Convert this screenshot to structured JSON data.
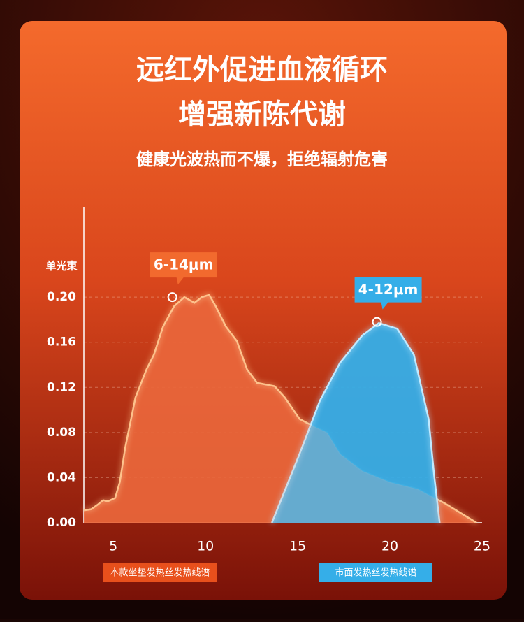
{
  "chart_data": {
    "type": "area",
    "title": "远红外促进血液循环",
    "subtitle": "增强新陈代谢",
    "caption": "健康光波热而不爆，拒绝辐射危害",
    "y_label": "单光束",
    "xlim": [
      3.4,
      25
    ],
    "ylim": [
      0,
      0.28
    ],
    "xticks": [
      5,
      10,
      15,
      20,
      25
    ],
    "yticks": [
      {
        "value": 0,
        "label": "0.00"
      },
      {
        "value": 0.04,
        "label": "0.04"
      },
      {
        "value": 0.08,
        "label": "0.08"
      },
      {
        "value": 0.12,
        "label": "0.12"
      },
      {
        "value": 0.16,
        "label": "0.16"
      },
      {
        "value": 0.2,
        "label": "0.20"
      }
    ],
    "grid": true,
    "series": [
      {
        "name": "本款坐垫发热丝发热线谱",
        "color": "#e8501c",
        "x": [
          3.4,
          3.8,
          4.15,
          4.45,
          4.7,
          5.1,
          5.35,
          5.65,
          6.2,
          6.8,
          7.2,
          7.7,
          8.3,
          8.85,
          9.4,
          9.8,
          10.2,
          10.55,
          11.1,
          11.7,
          12.25,
          12.8,
          13.75,
          14.3,
          15.1,
          15.8,
          16.6,
          17.3,
          18.5,
          20,
          21.5,
          23,
          24.7
        ],
        "values": [
          0.011,
          0.012,
          0.016,
          0.02,
          0.019,
          0.022,
          0.036,
          0.067,
          0.111,
          0.136,
          0.149,
          0.174,
          0.192,
          0.2,
          0.195,
          0.2,
          0.202,
          0.192,
          0.174,
          0.161,
          0.136,
          0.124,
          0.121,
          0.111,
          0.092,
          0.086,
          0.08,
          0.061,
          0.046,
          0.036,
          0.03,
          0.017,
          0
        ]
      },
      {
        "name": "市面发热丝发热线谱",
        "color": "#35aee8",
        "x": [
          13.6,
          15.1,
          16.2,
          17.3,
          18.5,
          19.4,
          20.4,
          21.3,
          22.1,
          22.4,
          22.7
        ],
        "values": [
          0,
          0.061,
          0.108,
          0.142,
          0.166,
          0.177,
          0.172,
          0.149,
          0.092,
          0.042,
          0
        ]
      }
    ],
    "annotations": [
      {
        "text": "6-14μm",
        "x": 8.2,
        "y": 0.2,
        "color": "#f26a2e"
      },
      {
        "text": "4-12μm",
        "x": 19.3,
        "y": 0.178,
        "color": "#35aee8"
      }
    ]
  }
}
